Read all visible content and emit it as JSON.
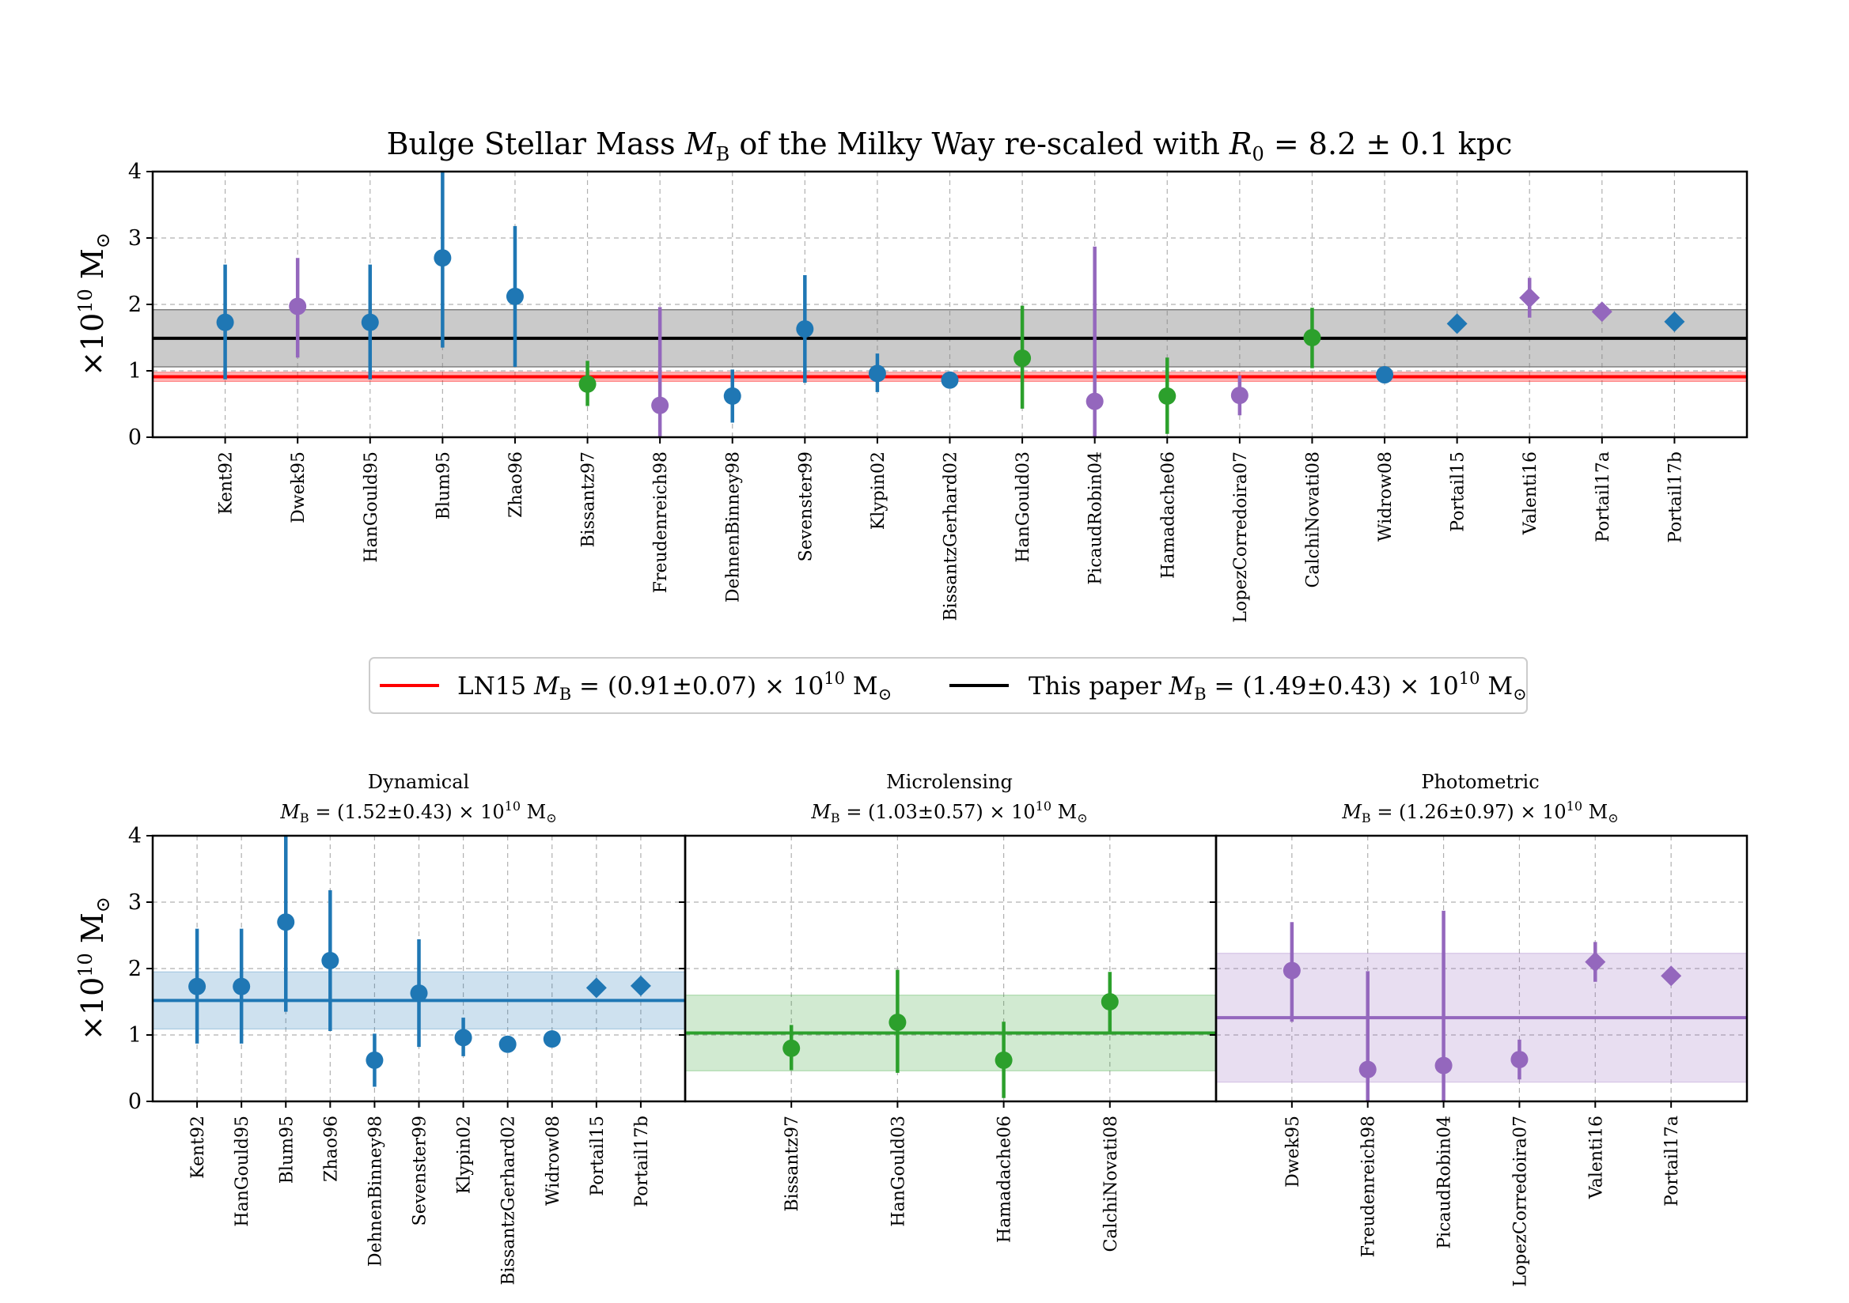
{
  "figure_title": "Bulge Stellar Mass M_B of the Milky Way re-scaled with R_0 = 8.2 ± 0.1 kpc",
  "colors": {
    "dynamical": "#1f77b4",
    "microlensing": "#2ca02c",
    "photometric": "#9467bd",
    "ln15": "#ff0000",
    "this_paper": "#000000",
    "band_gray": "#c8c8c8"
  },
  "legend": {
    "ln15_label": "LN15 M_B = (0.91±0.07) × 10^10 M_⊙",
    "paper_label": "This paper M_B = (1.49±0.43) × 10^10 M_⊙"
  },
  "chart_data": [
    {
      "id": "all",
      "type": "scatter",
      "title": "Bulge Stellar Mass M_B of the Milky Way re-scaled with R_0 = 8.2 ± 0.1 kpc",
      "ylabel": "×10^10 M_⊙",
      "ylim": [
        0,
        4
      ],
      "yticks": [
        "0",
        "1",
        "2",
        "3",
        "4"
      ],
      "grid": true,
      "categories": [
        "Kent92",
        "Dwek95",
        "HanGould95",
        "Blum95",
        "Zhao96",
        "Bissantz97",
        "Freudenreich98",
        "DehnenBinney98",
        "Sevenster99",
        "Klypin02",
        "BissantzGerhard02",
        "HanGould03",
        "PicaudRobin04",
        "Hamadache06",
        "LopezCorredoira07",
        "CalchiNovati08",
        "Widrow08",
        "Portail15",
        "Valenti16",
        "Portail17a",
        "Portail17b"
      ],
      "values": [
        1.73,
        1.97,
        1.73,
        2.7,
        2.12,
        0.8,
        0.48,
        0.62,
        1.63,
        0.96,
        0.86,
        1.19,
        0.54,
        0.62,
        0.63,
        1.5,
        0.94,
        1.71,
        2.1,
        1.89,
        1.74
      ],
      "err_low": [
        0.86,
        0.77,
        0.86,
        1.35,
        1.06,
        0.33,
        0.48,
        0.4,
        0.81,
        0.28,
        0,
        0.76,
        0.54,
        0.57,
        0.3,
        0.46,
        0,
        0,
        0.3,
        0,
        0
      ],
      "err_high": [
        0.87,
        0.73,
        0.87,
        1.35,
        1.06,
        0.35,
        1.48,
        0.4,
        0.81,
        0.3,
        0,
        0.79,
        2.33,
        0.58,
        0.3,
        0.45,
        0,
        0,
        0.3,
        0,
        0
      ],
      "method": [
        "dyn",
        "pho",
        "dyn",
        "dyn",
        "dyn",
        "mic",
        "pho",
        "dyn",
        "dyn",
        "dyn",
        "dyn",
        "mic",
        "pho",
        "mic",
        "pho",
        "mic",
        "dyn",
        "dyn",
        "pho",
        "pho",
        "dyn"
      ],
      "marker": [
        "o",
        "o",
        "o",
        "o",
        "o",
        "o",
        "o",
        "o",
        "o",
        "o",
        "o",
        "o",
        "o",
        "o",
        "o",
        "o",
        "o",
        "D",
        "D",
        "D",
        "D"
      ],
      "bands": [
        {
          "name": "This paper",
          "center": 1.49,
          "err": 0.43
        },
        {
          "name": "LN15",
          "center": 0.91,
          "err": 0.07
        }
      ]
    },
    {
      "id": "dyn",
      "type": "scatter",
      "title": "Dynamical",
      "subtitle": "M_B = (1.52±0.43) × 10^10 M_⊙",
      "ylabel": "×10^10 M_⊙",
      "ylim": [
        0,
        4
      ],
      "yticks": [
        "0",
        "1",
        "2",
        "3",
        "4"
      ],
      "categories": [
        "Kent92",
        "HanGould95",
        "Blum95",
        "Zhao96",
        "DehnenBinney98",
        "Sevenster99",
        "Klypin02",
        "BissantzGerhard02",
        "Widrow08",
        "Portail15",
        "Portail17b"
      ],
      "values": [
        1.73,
        1.73,
        2.7,
        2.12,
        0.62,
        1.63,
        0.96,
        0.86,
        0.94,
        1.71,
        1.74
      ],
      "err_low": [
        0.86,
        0.86,
        1.35,
        1.06,
        0.4,
        0.81,
        0.28,
        0,
        0,
        0,
        0
      ],
      "err_high": [
        0.87,
        0.87,
        1.35,
        1.06,
        0.4,
        0.81,
        0.3,
        0,
        0,
        0,
        0
      ],
      "marker": [
        "o",
        "o",
        "o",
        "o",
        "o",
        "o",
        "o",
        "o",
        "o",
        "D",
        "D"
      ],
      "band": {
        "center": 1.52,
        "err": 0.43
      }
    },
    {
      "id": "mic",
      "type": "scatter",
      "title": "Microlensing",
      "subtitle": "M_B = (1.03±0.57) × 10^10 M_⊙",
      "ylim": [
        0,
        4
      ],
      "categories": [
        "Bissantz97",
        "HanGould03",
        "Hamadache06",
        "CalchiNovati08"
      ],
      "values": [
        0.8,
        1.19,
        0.62,
        1.5
      ],
      "err_low": [
        0.33,
        0.76,
        0.57,
        0.46
      ],
      "err_high": [
        0.35,
        0.79,
        0.58,
        0.45
      ],
      "marker": [
        "o",
        "o",
        "o",
        "o"
      ],
      "band": {
        "center": 1.03,
        "err": 0.57
      }
    },
    {
      "id": "pho",
      "type": "scatter",
      "title": "Photometric",
      "subtitle": "M_B = (1.26±0.97) × 10^10 M_⊙",
      "ylim": [
        0,
        4
      ],
      "categories": [
        "Dwek95",
        "Freudenreich98",
        "PicaudRobin04",
        "LopezCorredoira07",
        "Valenti16",
        "Portail17a"
      ],
      "values": [
        1.97,
        0.48,
        0.54,
        0.63,
        2.1,
        1.89
      ],
      "err_low": [
        0.77,
        0.48,
        0.54,
        0.3,
        0.3,
        0
      ],
      "err_high": [
        0.73,
        1.48,
        2.33,
        0.3,
        0.3,
        0
      ],
      "marker": [
        "o",
        "o",
        "o",
        "o",
        "D",
        "D"
      ],
      "band": {
        "center": 1.26,
        "err": 0.97
      }
    }
  ]
}
